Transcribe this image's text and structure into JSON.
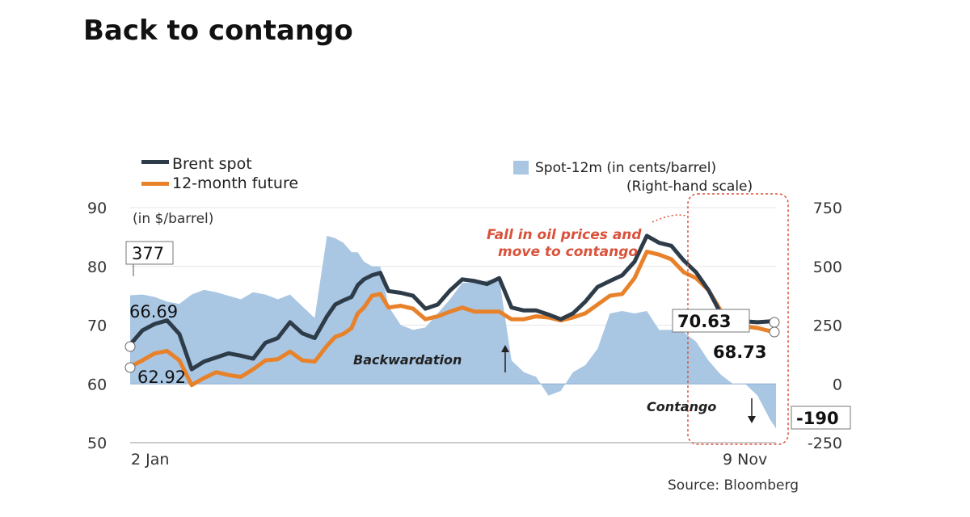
{
  "title": "Back to contango",
  "legend": {
    "brent": "Brent spot",
    "future": "12-month future",
    "spread": "Spot-12m (in cents/barrel)",
    "spread_note": "(Right-hand scale)"
  },
  "unit_label": "(in $/barrel)",
  "source": "Source: Bloomberg",
  "annotations": {
    "fall_line1": "Fall in oil prices and",
    "fall_line2": "move to contango",
    "backwardation": "Backwardation",
    "contango": "Contango"
  },
  "callouts": {
    "spread_start": "377",
    "brent_start": "66.69",
    "future_start": "62.92",
    "brent_end": "70.63",
    "future_end": "68.73",
    "spread_end": "-190"
  },
  "colors": {
    "brent": "#2e3c49",
    "future": "#e8822a",
    "spread": "#a9c6e3",
    "highlight": "#d9523b"
  },
  "chart_data": {
    "type": "line",
    "title": "Back to contango",
    "x_start_label": "2 Jan",
    "x_end_label": "9 Nov",
    "y_left": {
      "label": "(in $/barrel)",
      "range": [
        50,
        90
      ],
      "ticks": [
        "90",
        "80",
        "70",
        "60",
        "50"
      ]
    },
    "y_right": {
      "label": "Spot-12m (in cents/barrel)",
      "range": [
        -250,
        750
      ],
      "ticks": [
        "750",
        "500",
        "250",
        "0",
        "-250"
      ]
    },
    "x": [
      0,
      6,
      12,
      18,
      24,
      30,
      36,
      42,
      48,
      54,
      60,
      66,
      72,
      78,
      84,
      90,
      96,
      100,
      104,
      108,
      111,
      114,
      118,
      122,
      126,
      132,
      138,
      144,
      150,
      156,
      162,
      168,
      174,
      180,
      186,
      192,
      198,
      204,
      210,
      216,
      222,
      228,
      234,
      240,
      246,
      252,
      258,
      264,
      270,
      276,
      282,
      288,
      294,
      300,
      306,
      312,
      315
    ],
    "series": [
      {
        "name": "Brent spot",
        "axis": "left",
        "values": [
          66.69,
          69.1,
          70.2,
          70.8,
          68.5,
          62.5,
          63.8,
          64.5,
          65.2,
          64.8,
          64.3,
          67.0,
          67.8,
          70.5,
          68.6,
          67.8,
          71.5,
          73.5,
          74.2,
          74.8,
          76.8,
          77.8,
          78.5,
          78.9,
          75.8,
          75.5,
          75.0,
          72.8,
          73.5,
          75.9,
          77.8,
          77.5,
          77.0,
          78.0,
          73.0,
          72.5,
          72.5,
          71.8,
          71.0,
          72.0,
          74.0,
          76.5,
          77.5,
          78.5,
          80.8,
          85.2,
          84.0,
          83.5,
          81.0,
          79.0,
          76.0,
          72.0,
          71.0,
          70.63,
          70.5,
          70.63,
          70.63
        ]
      },
      {
        "name": "12-month future",
        "axis": "left",
        "values": [
          62.92,
          64.0,
          65.2,
          65.6,
          64.0,
          59.8,
          61.0,
          62.0,
          61.5,
          61.2,
          62.5,
          64.0,
          64.2,
          65.5,
          64.0,
          63.8,
          66.5,
          68.0,
          68.5,
          69.5,
          72.0,
          73.0,
          75.0,
          75.3,
          73.0,
          73.3,
          72.8,
          71.0,
          71.5,
          72.3,
          73.0,
          72.3,
          72.3,
          72.3,
          71.0,
          71.0,
          71.5,
          71.3,
          70.8,
          71.3,
          72.0,
          73.5,
          75.0,
          75.3,
          78.0,
          82.5,
          82.0,
          81.2,
          79.0,
          78.0,
          76.0,
          72.5,
          70.0,
          69.8,
          69.5,
          69.0,
          68.73
        ]
      },
      {
        "name": "Spot-12m (in cents/barrel)",
        "axis": "right",
        "values": [
          377,
          380,
          370,
          350,
          340,
          380,
          400,
          390,
          375,
          360,
          390,
          380,
          360,
          380,
          330,
          280,
          630,
          620,
          600,
          560,
          560,
          520,
          500,
          500,
          330,
          250,
          230,
          240,
          300,
          360,
          430,
          430,
          440,
          450,
          100,
          50,
          30,
          -50,
          -30,
          50,
          80,
          150,
          300,
          310,
          300,
          310,
          230,
          230,
          220,
          180,
          100,
          40,
          0,
          0,
          -50,
          -150,
          -190
        ]
      }
    ]
  }
}
